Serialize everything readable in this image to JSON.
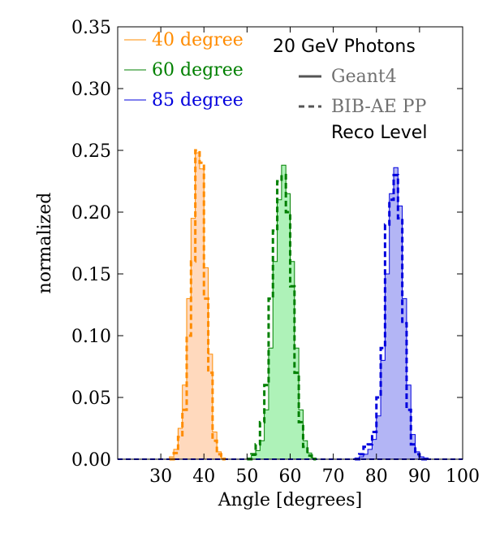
{
  "chart_data": {
    "type": "histogram",
    "title": "20 GeV Photons",
    "xlabel": "Angle [degrees]",
    "ylabel": "normalized",
    "xlim": [
      20,
      100
    ],
    "ylim": [
      0,
      0.35
    ],
    "xticks": [
      30,
      40,
      50,
      60,
      70,
      80,
      90,
      100
    ],
    "xtick_labels": [
      "30",
      "40",
      "50",
      "60",
      "70",
      "80",
      "90",
      "100"
    ],
    "yticks": [
      0.0,
      0.05,
      0.1,
      0.15,
      0.2,
      0.25,
      0.3,
      0.35
    ],
    "ytick_labels": [
      "0.00",
      "0.05",
      "0.10",
      "0.15",
      "0.20",
      "0.25",
      "0.30",
      "0.35"
    ],
    "grid": false,
    "legend_position": "top",
    "bin_width": 1,
    "legend_series": [
      "40 degree",
      "60 degree",
      "85 degree"
    ],
    "legend_styles": [
      {
        "label": "Geant4",
        "line": "solid"
      },
      {
        "label": "BIB-AE PP",
        "line": "dashed"
      }
    ],
    "annotation": "Reco Level",
    "series": [
      {
        "name": "40 degree",
        "color": "#ff8c00",
        "fill_color": "#ffd9bd",
        "geant4": {
          "bin_edges": [
            32,
            33,
            34,
            35,
            36,
            37,
            38,
            39,
            40,
            41,
            42,
            43,
            44,
            45
          ],
          "values": [
            0.002,
            0.008,
            0.025,
            0.06,
            0.13,
            0.195,
            0.248,
            0.235,
            0.155,
            0.085,
            0.022,
            0.006,
            0.001
          ]
        },
        "bib_ae": {
          "bin_edges": [
            32,
            33,
            34,
            35,
            36,
            37,
            38,
            39,
            40,
            41,
            42,
            43,
            44,
            45
          ],
          "values": [
            0.0,
            0.005,
            0.018,
            0.04,
            0.1,
            0.16,
            0.25,
            0.24,
            0.13,
            0.07,
            0.015,
            0.004,
            0.0
          ]
        }
      },
      {
        "name": "60 degree",
        "color": "#008000",
        "fill_color": "#aef2b8",
        "geant4": {
          "bin_edges": [
            50,
            51,
            52,
            53,
            54,
            55,
            56,
            57,
            58,
            59,
            60,
            61,
            62,
            63,
            64,
            65,
            66
          ],
          "values": [
            0.001,
            0.003,
            0.007,
            0.015,
            0.04,
            0.09,
            0.16,
            0.21,
            0.238,
            0.215,
            0.16,
            0.09,
            0.04,
            0.015,
            0.005,
            0.001
          ]
        },
        "bib_ae": {
          "bin_edges": [
            50,
            51,
            52,
            53,
            54,
            55,
            56,
            57,
            58,
            59,
            60,
            61,
            62,
            63,
            64,
            65,
            66
          ],
          "values": [
            0.0,
            0.004,
            0.012,
            0.03,
            0.06,
            0.13,
            0.185,
            0.225,
            0.23,
            0.2,
            0.14,
            0.07,
            0.03,
            0.01,
            0.003,
            0.0
          ]
        }
      },
      {
        "name": "85 degree",
        "color": "#0000dd",
        "fill_color": "#b3b5f5",
        "geant4": {
          "bin_edges": [
            75,
            76,
            77,
            78,
            79,
            80,
            81,
            82,
            83,
            84,
            85,
            86,
            87,
            88,
            89,
            90,
            91,
            92
          ],
          "values": [
            0.001,
            0.002,
            0.004,
            0.008,
            0.016,
            0.035,
            0.08,
            0.15,
            0.215,
            0.236,
            0.205,
            0.13,
            0.06,
            0.02,
            0.006,
            0.002,
            0.001
          ]
        },
        "bib_ae": {
          "bin_edges": [
            75,
            76,
            77,
            78,
            79,
            80,
            81,
            82,
            83,
            84,
            85,
            86,
            87,
            88,
            89,
            90,
            91,
            92
          ],
          "values": [
            0.0,
            0.004,
            0.01,
            0.012,
            0.022,
            0.05,
            0.09,
            0.19,
            0.21,
            0.23,
            0.195,
            0.11,
            0.04,
            0.012,
            0.004,
            0.0,
            0.0
          ]
        }
      }
    ]
  }
}
